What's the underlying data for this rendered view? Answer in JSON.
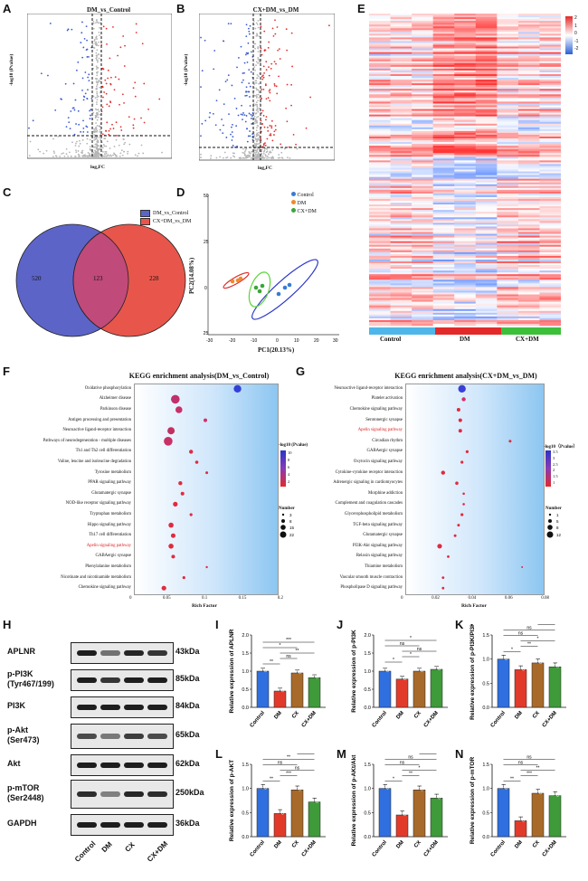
{
  "panels": {
    "A": {
      "letter": "A",
      "title": "DM_vs_Control",
      "xlabel": "log₂FC",
      "ylabel": "-log10 (Pvalue)"
    },
    "B": {
      "letter": "B",
      "title": "CX+DM_vs_DM",
      "xlabel": "log₂FC",
      "ylabel": "-log10 (Pvalue)"
    },
    "C": {
      "letter": "C",
      "legend": [
        "DM_vs_Control",
        "CX+DM_vs_DM"
      ],
      "left": "520",
      "overlap": "123",
      "right": "228",
      "colors": {
        "left": "#5d64c8",
        "right": "#e8564b"
      }
    },
    "D": {
      "letter": "D",
      "xlabel": "PC1(20.13%)",
      "ylabel": "PC2(14.08%)",
      "legend": [
        "Control",
        "DM",
        "CX+DM"
      ],
      "colors": [
        "#3a7bd5",
        "#f08a2b",
        "#3aa63a"
      ]
    },
    "E": {
      "letter": "E",
      "groups": [
        "Control",
        "DM",
        "CX+DM"
      ],
      "group_colors": [
        "#4fb6ea",
        "#e32a2a",
        "#3dbf3a"
      ],
      "scale": [
        "2",
        "1",
        "0",
        "-1",
        "-2"
      ]
    },
    "F": {
      "letter": "F",
      "title": "KEGG enrichment analysis(DM_vs_Control)",
      "xlabel": "Rich Factor",
      "xticks": [
        "0",
        "0.05",
        "0.1",
        "0.15",
        "0.2"
      ],
      "terms": [
        "Oxidative phosphorylation",
        "Alzheimer disease",
        "Parkinson disease",
        "Antigen processing and presentation",
        "Neuroactive ligand-receptor interaction",
        "Pathways of neurodegeneration - multiple diseases",
        "Th1 and Th2 cell differentiation",
        "Valine, leucine and isoleucine degradation",
        "Tyrosine metabolism",
        "PPAR signaling pathway",
        "Glutamatergic synapse",
        "NOD-like receptor signaling pathway",
        "Tryptophan metabolism",
        "Hippo signaling pathway",
        "Th17 cell differentiation",
        "Apelin signaling pathway",
        "GABAergic synapse",
        "Phenylalanine metabolism",
        "Nicotinate and nicotinamide metabolism",
        "Chemokine signaling pathway"
      ],
      "highlight_index": 15,
      "legend_p_title": "-log10 (Pvalue)",
      "legend_p": [
        "10",
        "8",
        "6",
        "4",
        "2"
      ],
      "legend_n_title": "Number",
      "legend_n": [
        "3",
        "8",
        "15",
        "22"
      ]
    },
    "G": {
      "letter": "G",
      "title": "KEGG enrichment analysis(CX+DM_vs_DM)",
      "xlabel": "Rich Factor",
      "xticks": [
        "0",
        "0.02",
        "0.04",
        "0.06",
        "0.08"
      ],
      "terms": [
        "Neuroactive ligand-receptor interaction",
        "Platelet activation",
        "Chemokine signaling pathway",
        "Serotonergic synapse",
        "Apelin signaling pathway",
        "Circadian rhythm",
        "GABAergic synapse",
        "Oxytocin signaling pathway",
        "Cytokine-cytokine receptor interaction",
        "Adrenergic signaling in cardiomyocytes",
        "Morphine addiction",
        "Complement and coagulation cascades",
        "Glycerophospholipid metabolism",
        "TGF-beta signaling pathway",
        "Glutamatergic synapse",
        "PI3K-Akt signaling pathway",
        "Relaxin signaling pathway",
        "Thiamine metabolism",
        "Vascular smooth muscle contraction",
        "Phospholipase D signaling pathway"
      ],
      "highlight_index": 4,
      "legend_p_title": "-log10（Pvalue）",
      "legend_p": [
        "3.5",
        "3",
        "2.5",
        "2",
        "1.5",
        "1"
      ],
      "legend_n_title": "Number",
      "legend_n": [
        "1",
        "5",
        "8",
        "12"
      ]
    },
    "H": {
      "letter": "H",
      "proteins": [
        "APLNR",
        "p-PI3K\n(Tyr467/199)",
        "PI3K",
        "p-Akt\n(Ser473)",
        "Akt",
        "p-mTOR\n(Ser2448)",
        "GAPDH"
      ],
      "kda": [
        "43kDa",
        "85kDa",
        "84kDa",
        "65kDa",
        "62kDa",
        "250kDa",
        "36kDa"
      ],
      "lanes": [
        "Control",
        "DM",
        "CX",
        "CX+DM"
      ]
    }
  },
  "chart_data": [
    {
      "id": "I",
      "type": "bar",
      "categories": [
        "Control",
        "DM",
        "CX",
        "CX+DM"
      ],
      "values": [
        1.0,
        0.45,
        0.95,
        0.82
      ],
      "ylabel": "Relative expression of APLNR",
      "yticks": [
        "0.0",
        "0.5",
        "1.0",
        "1.5",
        "2.0"
      ],
      "ylim": [
        0,
        2
      ],
      "sig": [
        "**",
        "ns",
        "**",
        "*",
        "***"
      ]
    },
    {
      "id": "J",
      "type": "bar",
      "categories": [
        "Control",
        "DM",
        "CX",
        "CX+DM"
      ],
      "values": [
        1.0,
        0.78,
        1.0,
        1.05
      ],
      "ylabel": "Relative expression of p-PI3K",
      "yticks": [
        "0.0",
        "0.5",
        "1.0",
        "1.5",
        "2.0"
      ],
      "ylim": [
        0,
        2
      ],
      "sig": [
        "*",
        "*",
        "ns",
        "ns",
        "*"
      ]
    },
    {
      "id": "K",
      "type": "bar",
      "categories": [
        "Control",
        "DM",
        "CX",
        "CX+DM"
      ],
      "values": [
        1.0,
        0.78,
        0.92,
        0.84
      ],
      "ylabel": "Relative expression of p-PI3K/PI3K",
      "yticks": [
        "0.0",
        "0.5",
        "1.0",
        "1.5"
      ],
      "ylim": [
        0,
        1.5
      ],
      "sig": [
        "*",
        "**",
        "*",
        "ns",
        "ns",
        "ns"
      ]
    },
    {
      "id": "L",
      "type": "bar",
      "categories": [
        "Control",
        "DM",
        "CX",
        "CX+DM"
      ],
      "values": [
        1.0,
        0.48,
        0.97,
        0.72
      ],
      "ylabel": "Relative expression of p-AKT",
      "yticks": [
        "0.0",
        "0.5",
        "1.0",
        "1.5"
      ],
      "ylim": [
        0,
        1.5
      ],
      "sig": [
        "**",
        "***",
        "ns",
        "ns",
        "**",
        "ns"
      ]
    },
    {
      "id": "M",
      "type": "bar",
      "categories": [
        "Control",
        "DM",
        "CX",
        "CX+DM"
      ],
      "values": [
        1.0,
        0.45,
        0.97,
        0.8
      ],
      "ylabel": "Relative expression of p-AKt/Akt",
      "yticks": [
        "0.0",
        "0.5",
        "1.0",
        "1.5"
      ],
      "ylim": [
        0,
        1.5
      ],
      "sig": [
        "*",
        "**",
        "*",
        "ns",
        "ns",
        "ns"
      ]
    },
    {
      "id": "N",
      "type": "bar",
      "categories": [
        "Control",
        "DM",
        "CX",
        "CX+DM"
      ],
      "values": [
        1.0,
        0.33,
        0.9,
        0.85
      ],
      "ylabel": "Relative expression of p-mTOR",
      "yticks": [
        "0.0",
        "0.5",
        "1.0",
        "1.5"
      ],
      "ylim": [
        0,
        1.5
      ],
      "sig": [
        "**",
        "***",
        "**",
        "ns",
        "ns"
      ]
    }
  ]
}
